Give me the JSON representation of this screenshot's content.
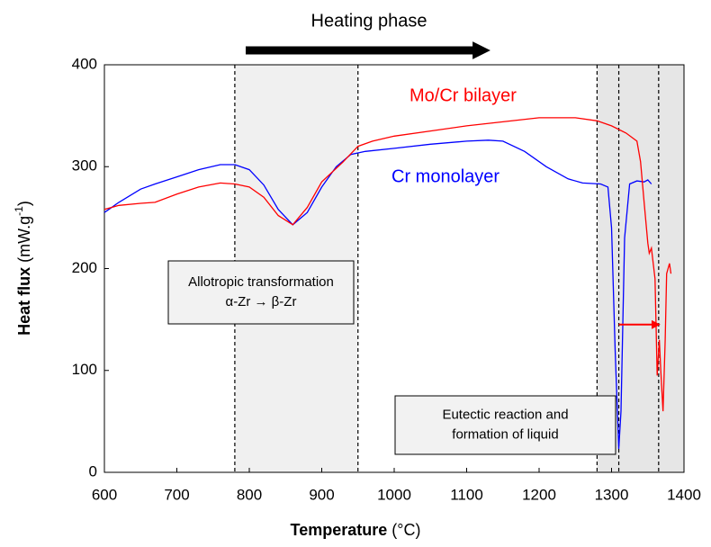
{
  "chart_data": {
    "type": "line",
    "heading": "Heating phase",
    "xlabel": {
      "bold": "Temperature",
      "rest": " (°C)"
    },
    "ylabel": {
      "bold": "Heat flux",
      "rest": " (mW.g",
      "sup": "-1",
      "close": ")"
    },
    "xlim": [
      600,
      1400
    ],
    "ylim": [
      0,
      400
    ],
    "xticks": [
      600,
      700,
      800,
      900,
      1000,
      1100,
      1200,
      1300,
      1400
    ],
    "yticks": [
      0,
      100,
      200,
      300,
      400
    ],
    "shaded": [
      [
        780,
        950
      ],
      [
        1280,
        1400
      ]
    ],
    "vlines": [
      780,
      950,
      1280,
      1310,
      1365
    ],
    "annotations": {
      "allotropic": [
        "Allotropic transformation",
        "α-Zr → β-Zr"
      ],
      "eutectic": [
        "Eutectic reaction and",
        "formation of liquid"
      ]
    },
    "shift_arrow": {
      "from": 1310,
      "to": 1365,
      "y": 145
    },
    "series": [
      {
        "name": "Cr monolayer",
        "color": "#0000ff",
        "x": [
          600,
          620,
          650,
          670,
          700,
          730,
          760,
          780,
          800,
          820,
          840,
          860,
          880,
          900,
          920,
          940,
          960,
          1000,
          1050,
          1100,
          1130,
          1150,
          1180,
          1210,
          1240,
          1260,
          1285,
          1295,
          1300,
          1305,
          1310,
          1313,
          1318,
          1325,
          1335,
          1345,
          1350,
          1355
        ],
        "values": [
          255,
          265,
          278,
          283,
          290,
          297,
          302,
          302,
          297,
          282,
          258,
          243,
          255,
          280,
          300,
          312,
          315,
          318,
          322,
          325,
          326,
          325,
          315,
          300,
          288,
          284,
          283,
          280,
          240,
          120,
          23,
          60,
          230,
          283,
          286,
          285,
          287,
          283
        ]
      },
      {
        "name": "Mo/Cr bilayer",
        "color": "#ff0000",
        "x": [
          600,
          620,
          650,
          670,
          700,
          730,
          760,
          780,
          800,
          820,
          840,
          860,
          880,
          900,
          930,
          950,
          970,
          1000,
          1050,
          1100,
          1150,
          1200,
          1250,
          1280,
          1300,
          1320,
          1335,
          1340,
          1345,
          1350,
          1352,
          1355,
          1360,
          1363,
          1366,
          1368,
          1371,
          1374,
          1376,
          1380,
          1382
        ],
        "values": [
          258,
          262,
          264,
          265,
          273,
          280,
          284,
          283,
          280,
          270,
          252,
          243,
          260,
          285,
          305,
          320,
          325,
          330,
          335,
          340,
          344,
          348,
          348,
          345,
          340,
          333,
          325,
          305,
          265,
          225,
          215,
          220,
          190,
          95,
          130,
          100,
          60,
          130,
          195,
          205,
          195
        ]
      }
    ]
  }
}
